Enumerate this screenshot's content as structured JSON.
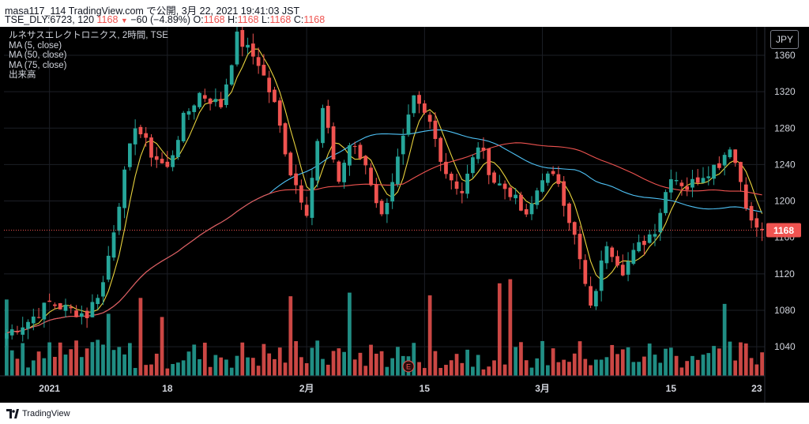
{
  "header": {
    "line1": "masa117_114 TradingView.com で公開, 3月 22, 2021 19:41:03 JST",
    "symbol": "TSE_DLY:6723, 120",
    "last": "1168",
    "change": "−60 (−4.89%)",
    "ohlc": [
      {
        "label": "O:",
        "value": "1168"
      },
      {
        "label": "H:",
        "value": "1168"
      },
      {
        "label": "L:",
        "value": "1168"
      },
      {
        "label": "C:",
        "value": "1168"
      }
    ]
  },
  "legend": {
    "title": "ルネサスエレクトロニクス, 2時間, TSE",
    "ma5": "MA (5, close)",
    "ma50": "MA (50, close)",
    "ma75": "MA (75, close)",
    "volume": "出来高"
  },
  "currency_button": "JPY",
  "footer": {
    "brand": "TradingView"
  },
  "chart_data": {
    "type": "candlestick",
    "title": "ルネサスエレクトロニクス, 2時間, TSE",
    "y_axis": {
      "ticks": [
        1040,
        1080,
        1120,
        1160,
        1200,
        1240,
        1280,
        1320,
        1360
      ],
      "range": [
        1008,
        1386
      ],
      "position": "right"
    },
    "x_axis": {
      "ticks": [
        {
          "label": "2021",
          "bar": 8
        },
        {
          "label": "18",
          "bar": 30
        },
        {
          "label": "2月",
          "bar": 56
        },
        {
          "label": "15",
          "bar": 78
        },
        {
          "label": "3月",
          "bar": 100
        },
        {
          "label": "15",
          "bar": 124
        },
        {
          "label": "23",
          "bar": 140
        }
      ]
    },
    "last_price": {
      "value": 1168,
      "label": "1168",
      "color": "#ef5350"
    },
    "earnings_marker": {
      "label": "E",
      "bar": 75
    },
    "colors": {
      "up": "#26a69a",
      "down": "#ef5350",
      "ma5": "#e8d23d",
      "ma50": "#4fc3f7",
      "ma75": "#ef5350"
    },
    "series": [
      {
        "name": "MA (5, close)",
        "ma_period": 5,
        "color": "#e8d23d"
      },
      {
        "name": "MA (50, close)",
        "ma_period": 50,
        "color": "#4fc3f7"
      },
      {
        "name": "MA (75, close)",
        "ma_period": 75,
        "color": "#ef5350"
      }
    ],
    "waypoints": [
      [
        0,
        1055
      ],
      [
        4,
        1068
      ],
      [
        8,
        1088
      ],
      [
        12,
        1080
      ],
      [
        15,
        1075
      ],
      [
        18,
        1110
      ],
      [
        21,
        1200
      ],
      [
        24,
        1285
      ],
      [
        27,
        1252
      ],
      [
        30,
        1235
      ],
      [
        33,
        1290
      ],
      [
        36,
        1318
      ],
      [
        40,
        1305
      ],
      [
        43,
        1380
      ],
      [
        47,
        1352
      ],
      [
        50,
        1305
      ],
      [
        53,
        1232
      ],
      [
        56,
        1190
      ],
      [
        59,
        1300
      ],
      [
        62,
        1222
      ],
      [
        64,
        1262
      ],
      [
        67,
        1240
      ],
      [
        70,
        1182
      ],
      [
        73,
        1245
      ],
      [
        76,
        1310
      ],
      [
        79,
        1285
      ],
      [
        82,
        1232
      ],
      [
        85,
        1210
      ],
      [
        88,
        1262
      ],
      [
        91,
        1222
      ],
      [
        94,
        1210
      ],
      [
        97,
        1180
      ],
      [
        100,
        1228
      ],
      [
        103,
        1222
      ],
      [
        106,
        1160
      ],
      [
        109,
        1080
      ],
      [
        112,
        1155
      ],
      [
        115,
        1125
      ],
      [
        118,
        1150
      ],
      [
        121,
        1170
      ],
      [
        124,
        1230
      ],
      [
        127,
        1215
      ],
      [
        130,
        1230
      ],
      [
        133,
        1242
      ],
      [
        135,
        1262
      ],
      [
        137,
        1222
      ],
      [
        139,
        1175
      ],
      [
        141,
        1168
      ]
    ],
    "bars": 142
  }
}
